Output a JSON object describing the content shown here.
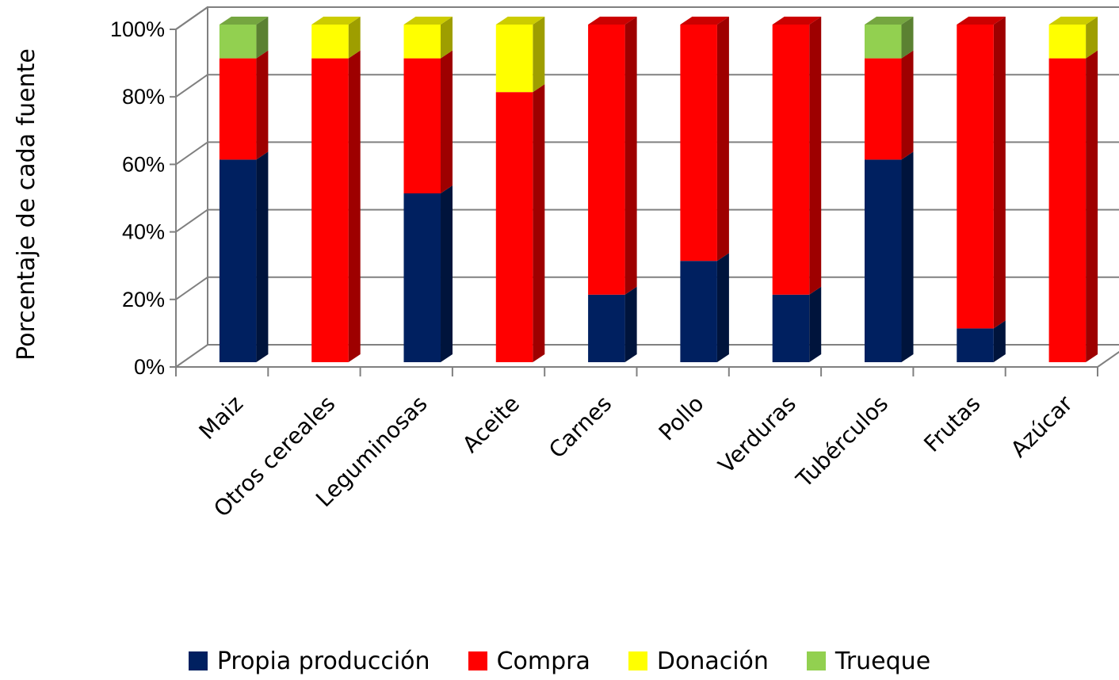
{
  "chart_data": {
    "type": "bar",
    "stacked": true,
    "percent": true,
    "three_d": true,
    "categories": [
      "Maiz",
      "Otros cereales",
      "Leguminosas",
      "Aceite",
      "Carnes",
      "Pollo",
      "Verduras",
      "Tubérculos",
      "Frutas",
      "Azúcar"
    ],
    "series": [
      {
        "name": "Propia producción",
        "color": "#002060",
        "values": [
          60,
          0,
          50,
          0,
          20,
          30,
          20,
          60,
          10,
          0
        ]
      },
      {
        "name": "Compra",
        "color": "#ff0000",
        "values": [
          30,
          90,
          40,
          80,
          80,
          70,
          80,
          30,
          90,
          90
        ]
      },
      {
        "name": "Donación",
        "color": "#ffff00",
        "values": [
          0,
          10,
          10,
          20,
          0,
          0,
          0,
          0,
          0,
          10
        ]
      },
      {
        "name": "Trueque",
        "color": "#92d050",
        "values": [
          10,
          0,
          0,
          0,
          0,
          0,
          0,
          10,
          0,
          0
        ]
      }
    ],
    "ylabel": "Porcentaje de cada fuente",
    "xlabel": "",
    "yticks": [
      "0%",
      "20%",
      "40%",
      "60%",
      "80%",
      "100%"
    ],
    "ylim": [
      0,
      100
    ],
    "grid": true,
    "legend_position": "bottom"
  }
}
